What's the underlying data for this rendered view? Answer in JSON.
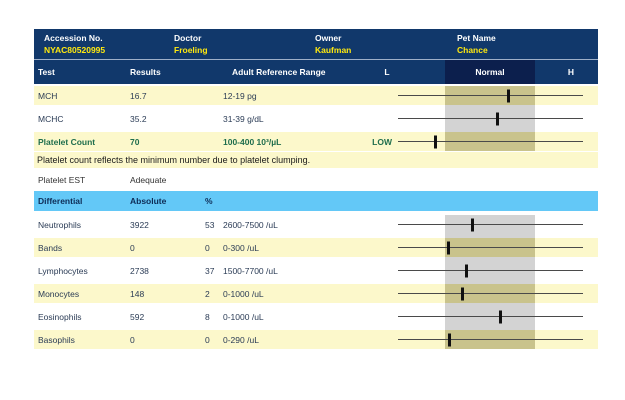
{
  "patient_header": {
    "fields": [
      {
        "label": "Accession No.",
        "value": "NYAC80520995"
      },
      {
        "label": "Doctor",
        "value": "Froeling"
      },
      {
        "label": "Owner",
        "value": "Kaufman"
      },
      {
        "label": "Pet Name",
        "value": "Chance"
      }
    ]
  },
  "columns": {
    "test": "Test",
    "results": "Results",
    "range": "Adult Reference Range",
    "low": "L",
    "normal": "Normal",
    "high": "H"
  },
  "cbc_rows": [
    {
      "test": "MCH",
      "result": "16.7",
      "range": "12-19 pg",
      "flag": "",
      "tick_x": 110
    },
    {
      "test": "MCHC",
      "result": "35.2",
      "range": "31-39 g/dL",
      "flag": "",
      "tick_x": 99
    },
    {
      "test": "Platelet Count",
      "result": "70",
      "range": "100-400 10³/µL",
      "flag": "LOW",
      "tick_x": 37
    }
  ],
  "note": "Platelet count reflects the minimum number due to platelet clumping.",
  "platelet_est": {
    "test": "Platelet EST",
    "result": "Adequate"
  },
  "differential": {
    "header": {
      "title": "Differential",
      "absolute": "Absolute",
      "percent": "%"
    },
    "rows": [
      {
        "test": "Neutrophils",
        "absolute": "3922",
        "percent": "53",
        "range": "2600-7500 /uL",
        "tick_x": 74
      },
      {
        "test": "Bands",
        "absolute": "0",
        "percent": "0",
        "range": "0-300 /uL",
        "tick_x": 50
      },
      {
        "test": "Lymphocytes",
        "absolute": "2738",
        "percent": "37",
        "range": "1500-7700 /uL",
        "tick_x": 68
      },
      {
        "test": "Monocytes",
        "absolute": "148",
        "percent": "2",
        "range": "0-1000 /uL",
        "tick_x": 64
      },
      {
        "test": "Eosinophils",
        "absolute": "592",
        "percent": "8",
        "range": "0-1000 /uL",
        "tick_x": 102
      },
      {
        "test": "Basophils",
        "absolute": "0",
        "percent": "0",
        "range": "0-290 /uL",
        "tick_x": 51
      }
    ]
  },
  "colors": {
    "header_navy": "#11386b",
    "normal_cell_navy": "#0c1f4d",
    "header_value_yellow": "#ffe90f",
    "row_yellow": "#fcf8cb",
    "differential_blue": "#63c8f7",
    "band_gray": "#d3d3d3",
    "band_olive": "#c9c38c",
    "abnormal_green": "#1f6e4d"
  }
}
